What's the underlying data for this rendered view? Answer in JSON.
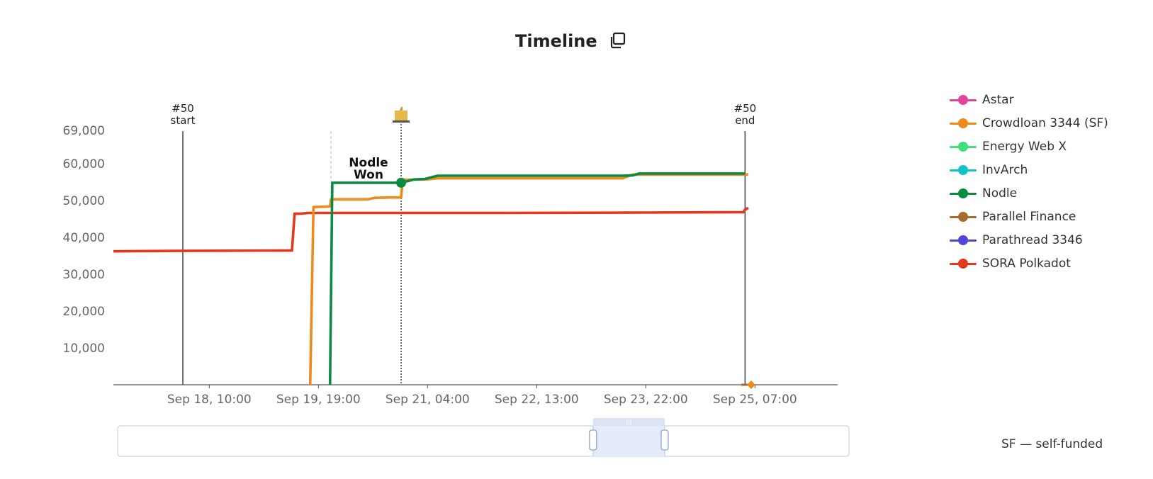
{
  "title": "Timeline",
  "footnote": "SF — self-funded",
  "chart_data": {
    "type": "line",
    "ylim": [
      0,
      69000
    ],
    "y_ticks": [
      "69,000",
      "60,000",
      "50,000",
      "40,000",
      "30,000",
      "20,000",
      "10,000"
    ],
    "y_tick_values": [
      69000,
      60000,
      50000,
      40000,
      30000,
      20000,
      10000
    ],
    "x_ticks": [
      "Sep 18, 10:00",
      "Sep 19, 19:00",
      "Sep 21, 04:00",
      "Sep 22, 13:00",
      "Sep 23, 22:00",
      "Sep 25, 07:00"
    ],
    "x_tick_hours": [
      10,
      43,
      76,
      109,
      142,
      175
    ],
    "x_start_label": "Sep 18, 00:00",
    "xlim_hours": [
      -19,
      200
    ],
    "markers": [
      {
        "top": "#50",
        "bottom": "start",
        "hour": 2
      },
      {
        "top": "#50",
        "bottom": "end",
        "hour": 172
      }
    ],
    "winner_annotation": {
      "line1": "Nodle",
      "line2": "Won",
      "hour": 68,
      "value": 54800
    },
    "series": [
      {
        "name": "Astar",
        "color": "#e0439b",
        "points": []
      },
      {
        "name": "Crowdloan 3344 (SF)",
        "color": "#ee8a1c",
        "points": [
          [
            40.5,
            0
          ],
          [
            41.5,
            48200
          ],
          [
            45,
            48300
          ],
          [
            46.5,
            48400
          ],
          [
            46.8,
            50300
          ],
          [
            58,
            50300
          ],
          [
            60,
            50700
          ],
          [
            65,
            50800
          ],
          [
            68,
            50800
          ],
          [
            68.5,
            55600
          ],
          [
            76,
            55700
          ],
          [
            79,
            56000
          ],
          [
            100,
            56000
          ],
          [
            135,
            56000
          ],
          [
            138,
            57000
          ],
          [
            172,
            57000
          ],
          [
            173,
            57100
          ]
        ]
      },
      {
        "name": "Energy Web X",
        "color": "#3fe07a",
        "points": []
      },
      {
        "name": "InvArch",
        "color": "#12c4c9",
        "points": []
      },
      {
        "name": "Nodle",
        "color": "#0a8a43",
        "points": [
          [
            46.5,
            0
          ],
          [
            47.2,
            54800
          ],
          [
            68,
            54800
          ],
          [
            72,
            55700
          ],
          [
            75,
            55800
          ],
          [
            79,
            56700
          ],
          [
            135,
            56700
          ],
          [
            138,
            56800
          ],
          [
            140,
            57300
          ],
          [
            172,
            57300
          ]
        ]
      },
      {
        "name": "Parallel Finance",
        "color": "#a36b2c",
        "points": []
      },
      {
        "name": "Parathread 3346",
        "color": "#5045d6",
        "points": []
      },
      {
        "name": "SORA Polkadot",
        "color": "#e4381c",
        "points": [
          [
            -19,
            36200
          ],
          [
            0,
            36300
          ],
          [
            30,
            36400
          ],
          [
            35,
            36400
          ],
          [
            35.8,
            46400
          ],
          [
            37.5,
            46400
          ],
          [
            40,
            46600
          ],
          [
            100,
            46600
          ],
          [
            140,
            46700
          ],
          [
            171.5,
            46800
          ],
          [
            172,
            47500
          ],
          [
            173,
            48000
          ]
        ]
      }
    ]
  },
  "legend": [
    {
      "label": "Astar",
      "color": "#e0439b"
    },
    {
      "label": "Crowdloan 3344 (SF)",
      "color": "#ee8a1c"
    },
    {
      "label": "Energy Web X",
      "color": "#3fe07a"
    },
    {
      "label": "InvArch",
      "color": "#12c4c9"
    },
    {
      "label": "Nodle",
      "color": "#0a8a43"
    },
    {
      "label": "Parallel Finance",
      "color": "#a36b2c"
    },
    {
      "label": "Parathread 3346",
      "color": "#5045d6"
    },
    {
      "label": "SORA Polkadot",
      "color": "#e4381c"
    }
  ],
  "zoom_window": {
    "start_fraction": 0.65,
    "end_fraction": 0.748
  }
}
